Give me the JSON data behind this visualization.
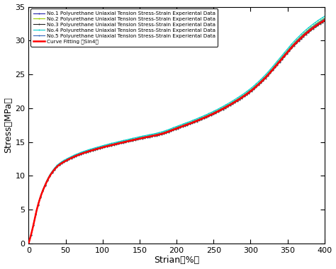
{
  "title": "",
  "xlabel": "Strian（%）",
  "ylabel": "Stress（MPa）",
  "xlim": [
    0,
    400
  ],
  "ylim": [
    0,
    35
  ],
  "xticks": [
    0,
    50,
    100,
    150,
    200,
    250,
    300,
    350,
    400
  ],
  "yticks": [
    0,
    5,
    10,
    15,
    20,
    25,
    30,
    35
  ],
  "background_color": "#ffffff",
  "legend_entries": [
    "No.1 Polyurethane Uniaxial Tension Stress-Strain Experiental Data",
    "No.2 Polyurethane Uniaxial Tension Stress-Strain Experiental Data",
    "No.3 Polyurethane Uniaxial Tension Stress-Strain Experiental Data",
    "No.4 Polyurethane Uniaxial Tension Stress-Strain Experiental Data",
    "No.5 Polyurethane Uniaxial Tension Stress-Strain Experiental Data",
    "Curve Fitting （Sin4）"
  ],
  "line_colors": [
    "#2222aa",
    "#99cc00",
    "#222222",
    "#00cccc",
    "#3366bb",
    "#ff0000"
  ],
  "line_widths": [
    0.8,
    0.8,
    0.8,
    0.8,
    0.8,
    1.8
  ],
  "markers": [
    ".",
    ".",
    ".",
    ".",
    ".",
    ""
  ],
  "marker_sizes": [
    1.5,
    1.5,
    1.5,
    1.5,
    1.5,
    0
  ],
  "spread_offsets": [
    0.0,
    0.6,
    -0.3,
    1.2,
    0.4
  ],
  "curve_knots": {
    "strains": [
      0,
      5,
      10,
      15,
      20,
      30,
      40,
      50,
      70,
      100,
      130,
      150,
      180,
      200,
      220,
      250,
      280,
      300,
      320,
      340,
      360,
      380,
      400
    ],
    "stresses": [
      0,
      2.0,
      4.5,
      6.5,
      8.0,
      10.2,
      11.5,
      12.2,
      13.2,
      14.2,
      15.0,
      15.5,
      16.2,
      17.0,
      17.8,
      19.2,
      21.0,
      22.5,
      24.5,
      27.0,
      29.5,
      31.5,
      33.0
    ]
  }
}
